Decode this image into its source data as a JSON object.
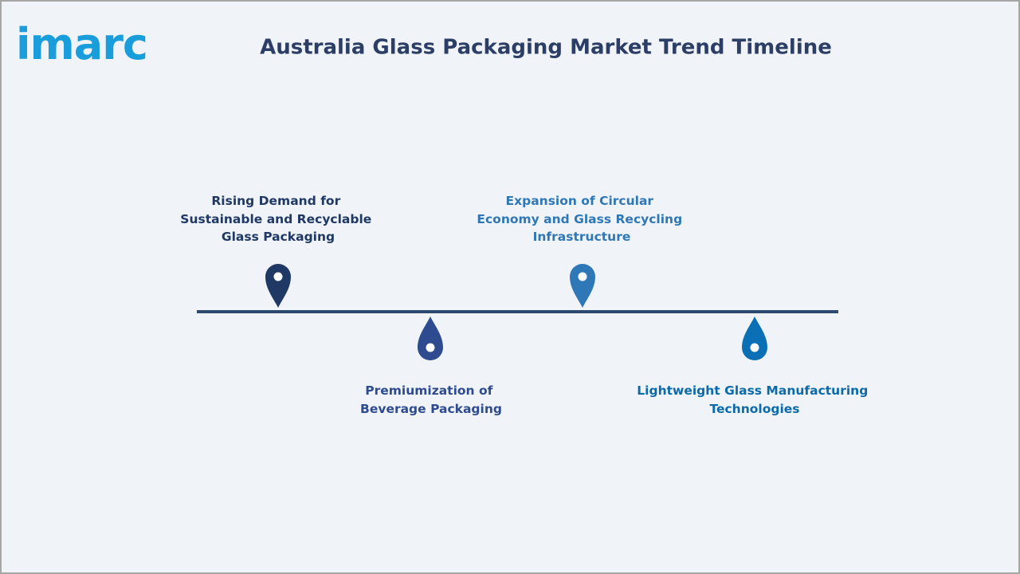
{
  "header": {
    "logo": "imarc",
    "title": "Australia Glass Packaging Market Trend Timeline"
  },
  "timeline": {
    "items": [
      {
        "label": [
          "Rising Demand for",
          "Sustainable and Recyclable",
          "Glass Packaging"
        ]
      },
      {
        "label": [
          "Premiumization of",
          "Beverage Packaging"
        ]
      },
      {
        "label": [
          "Expansion of Circular",
          "Economy and Glass Recycling",
          "Infrastructure"
        ]
      },
      {
        "label": [
          "Lightweight Glass Manufacturing",
          "Technologies"
        ]
      }
    ]
  }
}
